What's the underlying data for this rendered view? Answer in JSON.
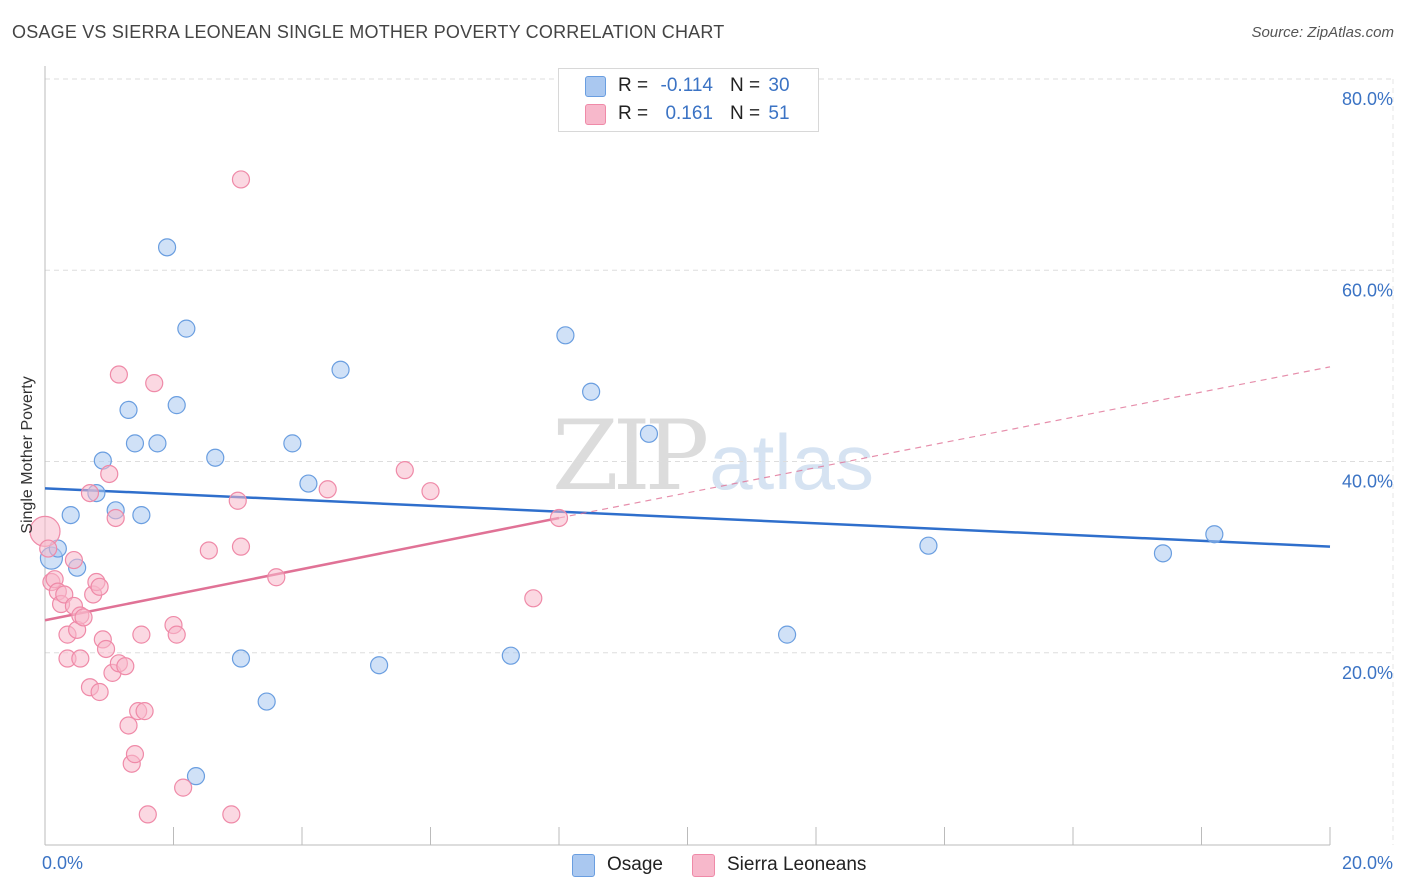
{
  "title": "OSAGE VS SIERRA LEONEAN SINGLE MOTHER POVERTY CORRELATION CHART",
  "source": "Source: ZipAtlas.com",
  "watermark": {
    "zip": "ZIP",
    "atlas": "atlas"
  },
  "legend_top": {
    "rows": [
      {
        "r_label": "R =",
        "r_value": "-0.114",
        "n_label": "N =",
        "n_value": "30",
        "color": "#aac8f0"
      },
      {
        "r_label": "R =",
        "r_value": "0.161",
        "n_label": "N =",
        "n_value": "51",
        "color": "#f7b8cb"
      }
    ]
  },
  "legend_bottom": {
    "items": [
      {
        "label": "Osage",
        "color": "#aac8f0"
      },
      {
        "label": "Sierra Leoneans",
        "color": "#f7b8cb"
      }
    ]
  },
  "chart_data": {
    "type": "scatter",
    "title": "OSAGE VS SIERRA LEONEAN SINGLE MOTHER POVERTY CORRELATION CHART",
    "xlabel": "",
    "ylabel": "Single Mother Poverty",
    "xlim": [
      0,
      20
    ],
    "ylim": [
      0,
      80
    ],
    "x_tick_labels": [
      "0.0%",
      "20.0%"
    ],
    "y_ticks": [
      20,
      40,
      60,
      80
    ],
    "y_tick_labels": [
      "20.0%",
      "40.0%",
      "60.0%",
      "80.0%"
    ],
    "grid": true,
    "series": [
      {
        "name": "Osage",
        "color": "#6a9ee0",
        "fill": "#aac8f0",
        "line_color": "#2f6fcc",
        "points": [
          [
            0.1,
            30.0
          ],
          [
            0.2,
            31.0
          ],
          [
            0.4,
            34.5
          ],
          [
            0.5,
            29.0
          ],
          [
            0.8,
            36.8
          ],
          [
            0.9,
            40.2
          ],
          [
            1.1,
            35.0
          ],
          [
            1.3,
            45.5
          ],
          [
            1.4,
            42.0
          ],
          [
            1.5,
            34.5
          ],
          [
            1.75,
            42.0
          ],
          [
            1.9,
            62.5
          ],
          [
            2.05,
            46.0
          ],
          [
            2.2,
            54.0
          ],
          [
            2.35,
            7.2
          ],
          [
            2.65,
            40.5
          ],
          [
            3.05,
            19.5
          ],
          [
            3.45,
            15.0
          ],
          [
            3.85,
            42.0
          ],
          [
            4.1,
            37.8
          ],
          [
            4.6,
            49.7
          ],
          [
            5.2,
            18.8
          ],
          [
            7.25,
            19.8
          ],
          [
            8.1,
            53.3
          ],
          [
            8.5,
            47.4
          ],
          [
            9.4,
            43.0
          ],
          [
            11.55,
            22.0
          ],
          [
            13.75,
            31.3
          ],
          [
            17.4,
            30.5
          ],
          [
            18.2,
            32.5
          ]
        ],
        "trend": {
          "x0": 0,
          "y0": 37.3,
          "x1": 20,
          "y1": 31.2
        }
      },
      {
        "name": "Sierra Leoneans",
        "color": "#ef8aa8",
        "fill": "#f7b8cb",
        "line_color": "#e07296",
        "points": [
          [
            0.0,
            32.8
          ],
          [
            0.05,
            31.0
          ],
          [
            0.1,
            27.5
          ],
          [
            0.15,
            27.8
          ],
          [
            0.2,
            26.5
          ],
          [
            0.25,
            25.2
          ],
          [
            0.3,
            26.2
          ],
          [
            0.35,
            22.0
          ],
          [
            0.35,
            19.5
          ],
          [
            0.45,
            25.0
          ],
          [
            0.45,
            29.8
          ],
          [
            0.5,
            22.5
          ],
          [
            0.55,
            24.0
          ],
          [
            0.55,
            19.5
          ],
          [
            0.6,
            23.8
          ],
          [
            0.7,
            16.5
          ],
          [
            0.7,
            36.8
          ],
          [
            0.75,
            26.2
          ],
          [
            0.8,
            27.5
          ],
          [
            0.85,
            16.0
          ],
          [
            0.85,
            27.0
          ],
          [
            0.9,
            21.5
          ],
          [
            0.95,
            20.5
          ],
          [
            1.0,
            38.8
          ],
          [
            1.05,
            18.0
          ],
          [
            1.1,
            34.2
          ],
          [
            1.15,
            19.0
          ],
          [
            1.15,
            49.2
          ],
          [
            1.25,
            18.7
          ],
          [
            1.3,
            12.5
          ],
          [
            1.35,
            8.5
          ],
          [
            1.4,
            9.5
          ],
          [
            1.45,
            14.0
          ],
          [
            1.5,
            22.0
          ],
          [
            1.55,
            14.0
          ],
          [
            1.6,
            3.2
          ],
          [
            1.7,
            48.3
          ],
          [
            2.0,
            23.0
          ],
          [
            2.05,
            22.0
          ],
          [
            2.15,
            6.0
          ],
          [
            2.55,
            30.8
          ],
          [
            2.9,
            3.2
          ],
          [
            3.0,
            36.0
          ],
          [
            3.05,
            69.6
          ],
          [
            3.05,
            31.2
          ],
          [
            3.6,
            28.0
          ],
          [
            4.4,
            37.2
          ],
          [
            5.6,
            39.2
          ],
          [
            6.0,
            37.0
          ],
          [
            7.6,
            25.8
          ],
          [
            8.0,
            34.2
          ]
        ],
        "trend": {
          "x0": 0,
          "y0": 23.5,
          "x1": 8.0,
          "y1": 34.2,
          "dashed_x1": 20,
          "dashed_y1": 50.0
        }
      }
    ]
  }
}
